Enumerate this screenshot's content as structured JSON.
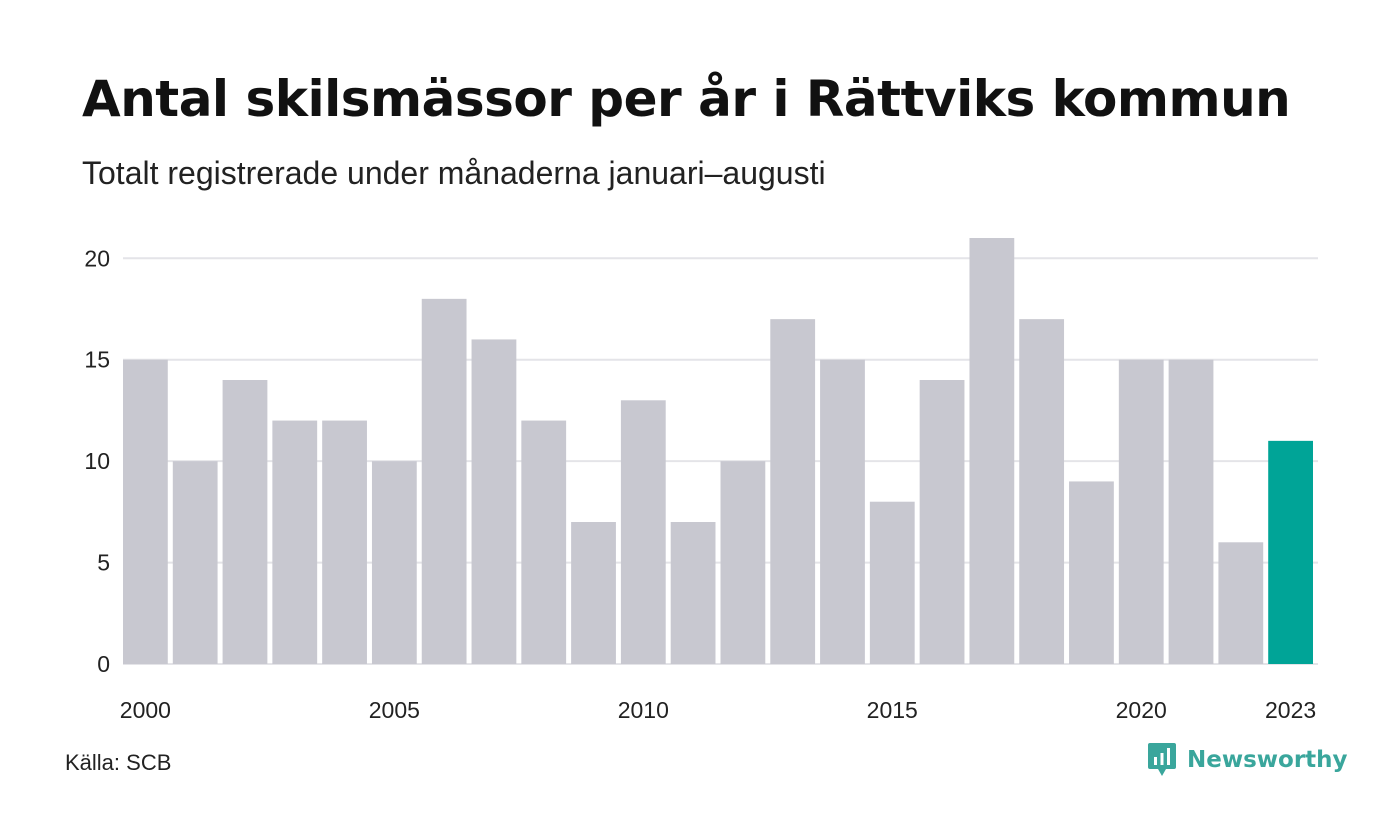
{
  "title": "Antal skilsmässor per år i Rättviks kommun",
  "subtitle": "Totalt registrerade under månaderna januari–augusti",
  "source": "Källa: SCB",
  "brand": {
    "name": "Newsworthy",
    "icon": "newsworthy-logo-icon"
  },
  "colors": {
    "bar": "#c8c8d0",
    "highlight": "#00a497",
    "grid": "#e4e4e8",
    "brand": "#3aa69c"
  },
  "chart_data": {
    "type": "bar",
    "title": "Antal skilsmässor per år i Rättviks kommun",
    "subtitle": "Totalt registrerade under månaderna januari–augusti",
    "categories": [
      "2000",
      "2001",
      "2002",
      "2003",
      "2004",
      "2005",
      "2006",
      "2007",
      "2008",
      "2009",
      "2010",
      "2011",
      "2012",
      "2013",
      "2014",
      "2015",
      "2016",
      "2017",
      "2018",
      "2019",
      "2020",
      "2021",
      "2022",
      "2023"
    ],
    "values": [
      15,
      10,
      14,
      12,
      12,
      10,
      18,
      16,
      12,
      7,
      13,
      7,
      10,
      17,
      15,
      8,
      14,
      21,
      17,
      9,
      15,
      15,
      6,
      11
    ],
    "highlight_category": "2023",
    "xlabel": "",
    "ylabel": "",
    "ylim": [
      0,
      21
    ],
    "yticks": [
      0,
      5,
      10,
      15,
      20
    ],
    "xtick_labels": [
      "2000",
      "2005",
      "2010",
      "2015",
      "2020",
      "2023"
    ],
    "grid": true,
    "legend": "none"
  }
}
